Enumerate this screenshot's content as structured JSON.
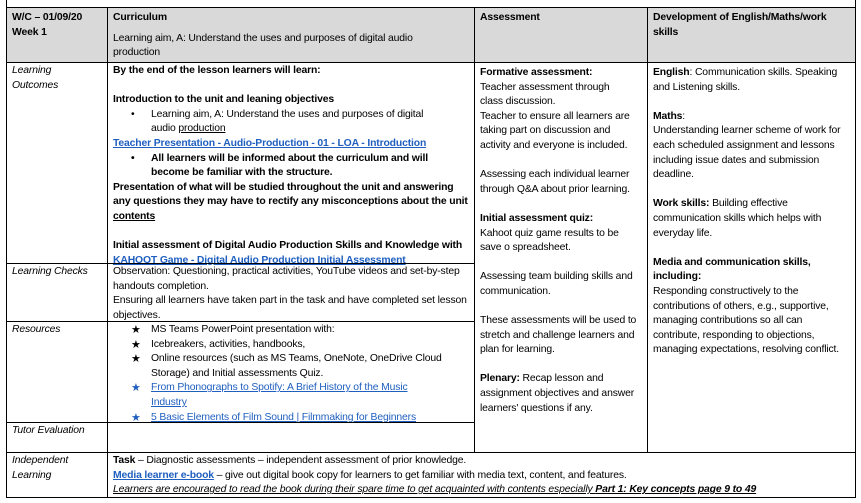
{
  "header": {
    "week": "W/C – 01/09/20",
    "week_num": "Week 1",
    "curriculum_title": "Curriculum",
    "curriculum_aim": "Learning aim, A: Understand the uses and purposes of digital audio production",
    "assessment_title": "Assessment",
    "development_title": "Development of English/Maths/work skills"
  },
  "rows": {
    "learning_outcomes": "Learning Outcomes",
    "learning_checks": "Learning Checks",
    "resources": "Resources",
    "tutor_evaluation": "Tutor Evaluation",
    "independent_learning": "Independent Learning"
  },
  "outcomes": {
    "intro": "By the end of the lesson learners will learn:",
    "heading": "Introduction to the unit and leaning objectives",
    "aim_bullet_a": "Learning aim, A: Understand the uses and purposes of digital audio ",
    "aim_bullet_b": "production",
    "presentation_link": "Teacher Presentation - Audio-Production - 01 - LOA - Introduction",
    "informed_bullet": "All learners will be informed about the curriculum and will become be familiar with the structure.",
    "presentation_text_a": "Presentation of what will be studied throughout the unit and answering any questions they may have to rectify any misconceptions about the unit ",
    "presentation_text_b": "contents",
    "initial_text": "Initial assessment of Digital Audio Production Skills and Knowledge with ",
    "kahoot_link": "KAHOOT Game - Digital Audio Production Initial Assessment"
  },
  "checks": {
    "line1": "Observation: Questioning, practical activities, YouTube videos and set-by-step handouts completion.",
    "line2": "Ensuring all learners have taken part in the task and have completed set lesson objectives."
  },
  "resources": [
    {
      "text": "MS Teams PowerPoint presentation with:",
      "link": false
    },
    {
      "text": "Icebreakers, activities, handbooks,",
      "link": false
    },
    {
      "text": "Online resources (such as MS Teams, OneNote, OneDrive Cloud Storage) and Initial assessments Quiz.",
      "link": false
    },
    {
      "text": "From Phonographs to Spotify: A Brief History of the Music Industry",
      "link": true
    },
    {
      "text": "5 Basic Elements of Film Sound | Filmmaking for Beginners",
      "link": true
    }
  ],
  "assessment": {
    "formative_title": "Formative assessment:",
    "formative_1": "Teacher assessment through class discussion.",
    "formative_2": "Teacher to ensure all learners are taking part on discussion and activity and everyone is included.",
    "individual": "Assessing each individual learner through Q&A about prior learning.",
    "quiz_title": "Initial assessment quiz:",
    "quiz_text": "Kahoot quiz game results to be save o spreadsheet.",
    "team": "Assessing team building skills and communication.",
    "stretch": "These assessments will be used to stretch and challenge learners and plan for learning.",
    "plenary_title": "Plenary:",
    "plenary_text": " Recap lesson and assignment objectives and answer learners' questions if any."
  },
  "development": {
    "english_label": "English",
    "english_text": ": Communication skills. Speaking and Listening skills.",
    "maths_label": "Maths",
    "maths_colon": ":",
    "maths_text": "Understanding learner scheme of work for each scheduled assignment and lessons including issue dates and submission deadline.",
    "work_label": "Work skills:",
    "work_text": " Building effective communication skills which helps with everyday life.",
    "media_label": "Media and communication skills, including:",
    "media_text": "Responding constructively to the contributions of others, e.g., supportive, managing contributions so all can contribute, responding to objections, managing expectations, resolving conflict."
  },
  "independent": {
    "task_label": "Task",
    "task_text": " – Diagnostic assessments – independent assessment of prior knowledge.",
    "ebook_link": "Media learner e-book",
    "ebook_text": " – give out digital book copy for learners to get familiar with media text, content, and features.",
    "encourage_text": "Learners are encouraged to read the book during their spare time to get acquainted with contents especially ",
    "encourage_bold": "Part 1: Key concepts page 9 to 49"
  },
  "colors": {
    "header_bg": "#d9d9d9",
    "link": "#1f5fbf"
  }
}
